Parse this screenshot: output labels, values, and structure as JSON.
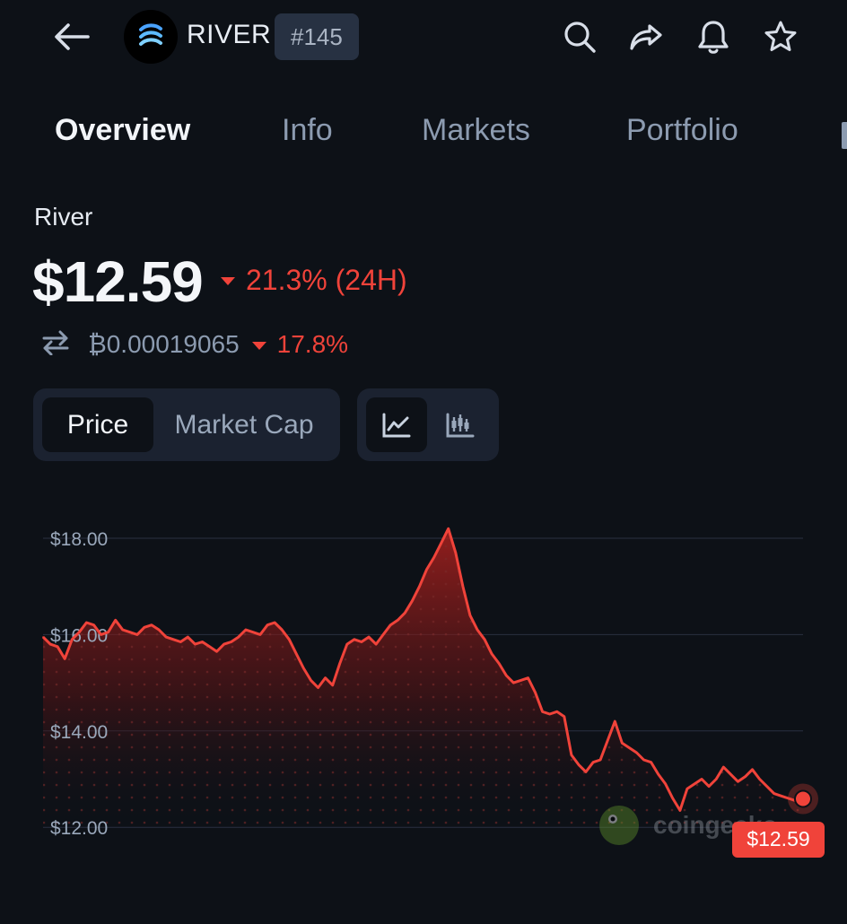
{
  "header": {
    "coin_symbol": "RIVER",
    "rank": "#145",
    "icons": [
      "back-arrow-icon",
      "search-icon",
      "share-icon",
      "bell-icon",
      "star-icon"
    ]
  },
  "tabs": [
    {
      "label": "Overview",
      "active": true
    },
    {
      "label": "Info",
      "active": false
    },
    {
      "label": "Markets",
      "active": false
    },
    {
      "label": "Portfolio",
      "active": false
    }
  ],
  "asset": {
    "name": "River",
    "price": "$12.59",
    "change_24h": "21.3% (24H)",
    "btc_price": "₿0.00019065",
    "btc_change": "17.8%"
  },
  "toggles": {
    "metric": [
      "Price",
      "Market Cap"
    ],
    "active_metric": "Price",
    "chart_types": [
      "line-chart-icon",
      "candlestick-chart-icon"
    ],
    "active_chart_type": "line-chart-icon"
  },
  "colors": {
    "background": "#0d1117",
    "negative": "#f0433a",
    "muted": "#8c9bb0"
  },
  "chart_data": {
    "type": "area",
    "ylim": [
      11.7,
      18.4
    ],
    "y_ticks": [
      "$18.00",
      "$16.00",
      "$14.00",
      "$12.00"
    ],
    "y_tick_values": [
      18,
      16,
      14,
      12
    ],
    "values": [
      15.95,
      15.8,
      15.75,
      15.5,
      15.9,
      16.05,
      16.25,
      16.2,
      16.0,
      16.05,
      16.3,
      16.1,
      16.05,
      16.0,
      16.15,
      16.2,
      16.1,
      15.95,
      15.9,
      15.85,
      15.95,
      15.8,
      15.85,
      15.75,
      15.65,
      15.8,
      15.85,
      15.95,
      16.1,
      16.05,
      16.0,
      16.2,
      16.25,
      16.1,
      15.9,
      15.6,
      15.3,
      15.05,
      14.9,
      15.1,
      14.95,
      15.4,
      15.8,
      15.9,
      15.85,
      15.95,
      15.8,
      16.0,
      16.2,
      16.3,
      16.45,
      16.7,
      17.0,
      17.35,
      17.6,
      17.9,
      18.2,
      17.7,
      17.0,
      16.4,
      16.1,
      15.9,
      15.6,
      15.4,
      15.15,
      15.0,
      15.05,
      15.1,
      14.8,
      14.4,
      14.35,
      14.4,
      14.3,
      13.5,
      13.3,
      13.15,
      13.35,
      13.4,
      13.8,
      14.2,
      13.75,
      13.65,
      13.55,
      13.4,
      13.35,
      13.1,
      12.9,
      12.6,
      12.35,
      12.8,
      12.9,
      13.0,
      12.85,
      13.0,
      13.25,
      13.1,
      12.95,
      13.05,
      13.2,
      13.0,
      12.85,
      12.7,
      12.65,
      12.6,
      12.55,
      12.59
    ],
    "last_value_label": "$12.59",
    "watermark": "coingecko"
  }
}
